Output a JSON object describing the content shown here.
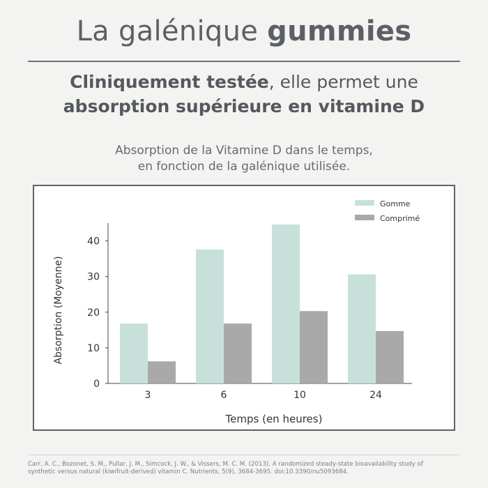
{
  "header": {
    "title_light": "La galénique",
    "title_bold": "gummies"
  },
  "subtitle": {
    "line1_bold": "Cliniquement testée",
    "line1_rest": ", elle permet une",
    "line2_bold": "absorption supérieure en vitamine D"
  },
  "caption": {
    "line1": "Absorption de la Vitamine D dans le temps,",
    "line2": "en fonction de la galénique utilisée."
  },
  "colors": {
    "gomme": "#c7e1da",
    "comprime": "#a9a9a9",
    "axis": "#444444"
  },
  "chart_data": {
    "type": "bar",
    "categories": [
      "3",
      "6",
      "10",
      "24"
    ],
    "series": [
      {
        "name": "Gomme",
        "values": [
          16.8,
          37.6,
          44.6,
          30.6
        ]
      },
      {
        "name": "Comprimé",
        "values": [
          6.2,
          16.8,
          20.3,
          14.7
        ]
      }
    ],
    "xlabel": "Temps (en heures)",
    "ylabel": "Absorption (Moyenne)",
    "ylim": [
      0,
      45
    ],
    "yticks": [
      0,
      10,
      20,
      30,
      40
    ],
    "legend_position": "top-right",
    "grid": false
  },
  "footnote": {
    "line1": "Carr, A. C., Bozonet, S. M., Pullar, J. M., Simcock, J. W., & Vissers, M. C. M. (2013). A randomized steady-state bioavailability study of",
    "line2": "synthetic versus natural (kiwifruit-derived) vitamin C. Nutrients, 5(9), 3684-3695. doi:10.3390/nu5093684."
  }
}
